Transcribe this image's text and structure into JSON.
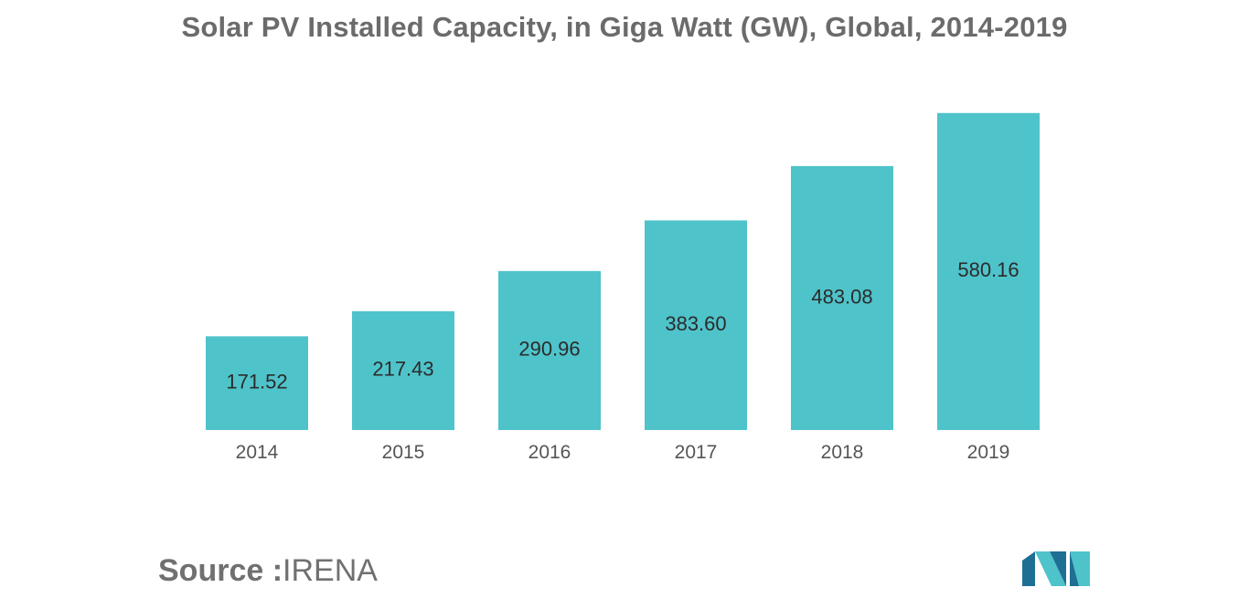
{
  "chart_data": {
    "type": "bar",
    "title": "Solar PV Installed Capacity, in Giga Watt (GW), Global, 2014-2019",
    "categories": [
      "2014",
      "2015",
      "2016",
      "2017",
      "2018",
      "2019"
    ],
    "values": [
      171.52,
      217.43,
      290.96,
      383.6,
      483.08,
      580.16
    ],
    "value_labels": [
      "171.52",
      "217.43",
      "290.96",
      "383.60",
      "483.08",
      "580.16"
    ],
    "xlabel": "",
    "ylabel": "",
    "ylim": [
      0,
      600
    ],
    "grid": false,
    "bar_color": "#4fc3ca"
  },
  "footer": {
    "source_key": "Source :",
    "source_value": "IRENA"
  },
  "colors": {
    "title": "#6b6b6b",
    "logo_light": "#4fc3ca",
    "logo_dark": "#1f6f94"
  },
  "logo": {
    "icon": "mordor-intelligence-logo-icon"
  }
}
